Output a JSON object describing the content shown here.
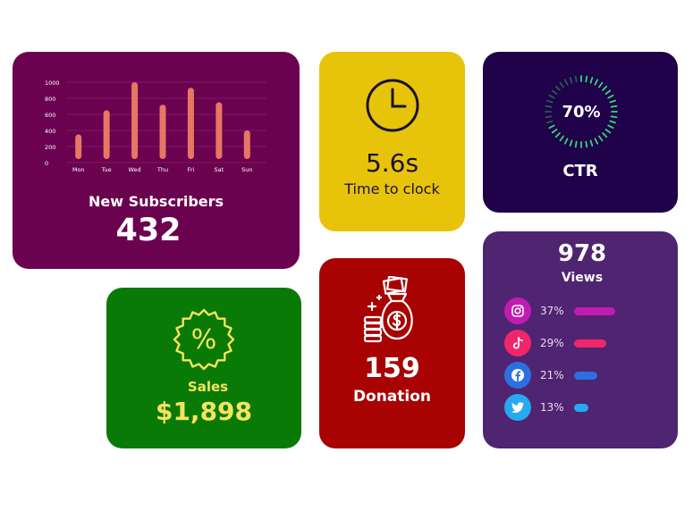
{
  "subscribers": {
    "title": "New Subscribers",
    "value": "432",
    "chart_data": {
      "type": "bar",
      "title": "",
      "xlabel": "",
      "ylabel": "",
      "categories": [
        "Mon",
        "Tue",
        "Wed",
        "Thu",
        "Fri",
        "Sat",
        "Sun"
      ],
      "values": [
        350,
        650,
        1000,
        720,
        930,
        750,
        400
      ],
      "ylim": [
        0,
        1000
      ],
      "yticks": [
        "0",
        "200",
        "400",
        "600",
        "800",
        "1000"
      ],
      "grid": true,
      "bar_color": "#e67762"
    }
  },
  "time_to_clock": {
    "value": "5.6s",
    "label": "Time to clock"
  },
  "ctr": {
    "percent_label": "70%",
    "percent": 70,
    "label": "CTR"
  },
  "views": {
    "value": "978",
    "label": "Views",
    "networks": [
      {
        "icon": "instagram-icon",
        "percent": "37%",
        "share": 0.37,
        "color": "#c21bb1"
      },
      {
        "icon": "tiktok-icon",
        "percent": "29%",
        "share": 0.29,
        "color": "#f0266b"
      },
      {
        "icon": "facebook-icon",
        "percent": "21%",
        "share": 0.21,
        "color": "#2d6fe0"
      },
      {
        "icon": "twitter-icon",
        "percent": "13%",
        "share": 0.13,
        "color": "#27a8f0"
      }
    ]
  },
  "sales": {
    "label": "Sales",
    "value": "$1,898"
  },
  "donation": {
    "value": "159",
    "label": "Donation"
  }
}
